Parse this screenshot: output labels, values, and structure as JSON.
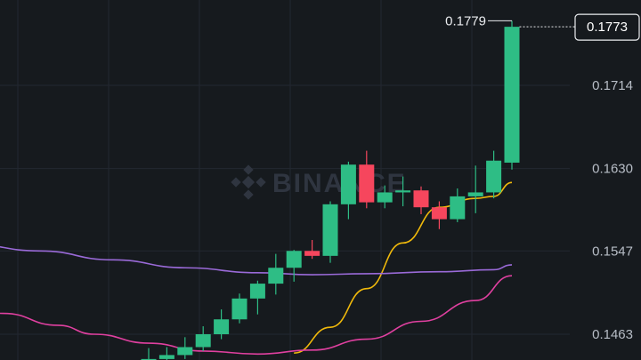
{
  "colors": {
    "background": "#161a1e",
    "grid": "#232831",
    "up": "#2ebd85",
    "down": "#f6465d",
    "ma_fast": "#f0b90b",
    "ma_mid": "#e040a0",
    "ma_slow": "#9a6ad8",
    "tick_text": "#b7bdc6",
    "watermark": "#2f3540"
  },
  "watermark": "BINANCE",
  "chart_data": {
    "type": "candlestick",
    "y_axis": {
      "ticks": [
        "0.1714",
        "0.1630",
        "0.1547",
        "0.1463"
      ],
      "ylim": [
        0.1437,
        0.18
      ],
      "position": "right"
    },
    "high_label": "0.1779",
    "current_price": "0.1773",
    "candles": [
      {
        "o": 0.1436,
        "h": 0.1449,
        "l": 0.1433,
        "c": 0.1438
      },
      {
        "o": 0.1438,
        "h": 0.145,
        "l": 0.1434,
        "c": 0.1442
      },
      {
        "o": 0.1442,
        "h": 0.146,
        "l": 0.1438,
        "c": 0.145
      },
      {
        "o": 0.145,
        "h": 0.1471,
        "l": 0.1446,
        "c": 0.1463
      },
      {
        "o": 0.1463,
        "h": 0.1488,
        "l": 0.1458,
        "c": 0.1478
      },
      {
        "o": 0.1478,
        "h": 0.1504,
        "l": 0.1474,
        "c": 0.1499
      },
      {
        "o": 0.1499,
        "h": 0.1517,
        "l": 0.1483,
        "c": 0.1514
      },
      {
        "o": 0.1514,
        "h": 0.1544,
        "l": 0.1503,
        "c": 0.153
      },
      {
        "o": 0.153,
        "h": 0.1548,
        "l": 0.1516,
        "c": 0.1547
      },
      {
        "o": 0.1547,
        "h": 0.1558,
        "l": 0.1539,
        "c": 0.1542
      },
      {
        "o": 0.1542,
        "h": 0.1597,
        "l": 0.1535,
        "c": 0.1594
      },
      {
        "o": 0.1594,
        "h": 0.1637,
        "l": 0.1579,
        "c": 0.1634
      },
      {
        "o": 0.1634,
        "h": 0.1648,
        "l": 0.159,
        "c": 0.1596
      },
      {
        "o": 0.1596,
        "h": 0.1613,
        "l": 0.159,
        "c": 0.1606
      },
      {
        "o": 0.1606,
        "h": 0.1622,
        "l": 0.1592,
        "c": 0.1608
      },
      {
        "o": 0.1608,
        "h": 0.1612,
        "l": 0.1584,
        "c": 0.1591
      },
      {
        "o": 0.1591,
        "h": 0.1597,
        "l": 0.1569,
        "c": 0.1579
      },
      {
        "o": 0.1579,
        "h": 0.161,
        "l": 0.1576,
        "c": 0.1602
      },
      {
        "o": 0.1602,
        "h": 0.1633,
        "l": 0.1585,
        "c": 0.1606
      },
      {
        "o": 0.1606,
        "h": 0.1648,
        "l": 0.16,
        "c": 0.1638
      },
      {
        "o": 0.1636,
        "h": 0.1779,
        "l": 0.1629,
        "c": 0.1773
      }
    ],
    "moving_averages": [
      {
        "key": "ma_fast",
        "color_key": "ma_fast",
        "points": [
          [
            8,
            0.1444
          ],
          [
            10,
            0.147
          ],
          [
            12,
            0.1509
          ],
          [
            14,
            0.1555
          ],
          [
            16,
            0.1591
          ],
          [
            18,
            0.16
          ],
          [
            19,
            0.1602
          ],
          [
            20,
            0.1616
          ]
        ]
      },
      {
        "key": "ma_mid",
        "color_key": "ma_mid",
        "points": [
          [
            -10,
            0.1487
          ],
          [
            -8,
            0.1484
          ],
          [
            -5,
            0.1472
          ],
          [
            -3,
            0.1463
          ],
          [
            0,
            0.1454
          ],
          [
            3,
            0.1446
          ],
          [
            6,
            0.1443
          ],
          [
            9,
            0.1447
          ],
          [
            12,
            0.1458
          ],
          [
            15,
            0.1476
          ],
          [
            18,
            0.1497
          ],
          [
            20,
            0.1522
          ]
        ]
      },
      {
        "key": "ma_slow",
        "color_key": "ma_slow",
        "points": [
          [
            -10,
            0.1554
          ],
          [
            -6,
            0.1547
          ],
          [
            -2,
            0.1538
          ],
          [
            2,
            0.153
          ],
          [
            6,
            0.1525
          ],
          [
            9,
            0.1523
          ],
          [
            12,
            0.1524
          ],
          [
            16,
            0.1526
          ],
          [
            19,
            0.1528
          ],
          [
            20,
            0.1533
          ]
        ]
      }
    ]
  }
}
